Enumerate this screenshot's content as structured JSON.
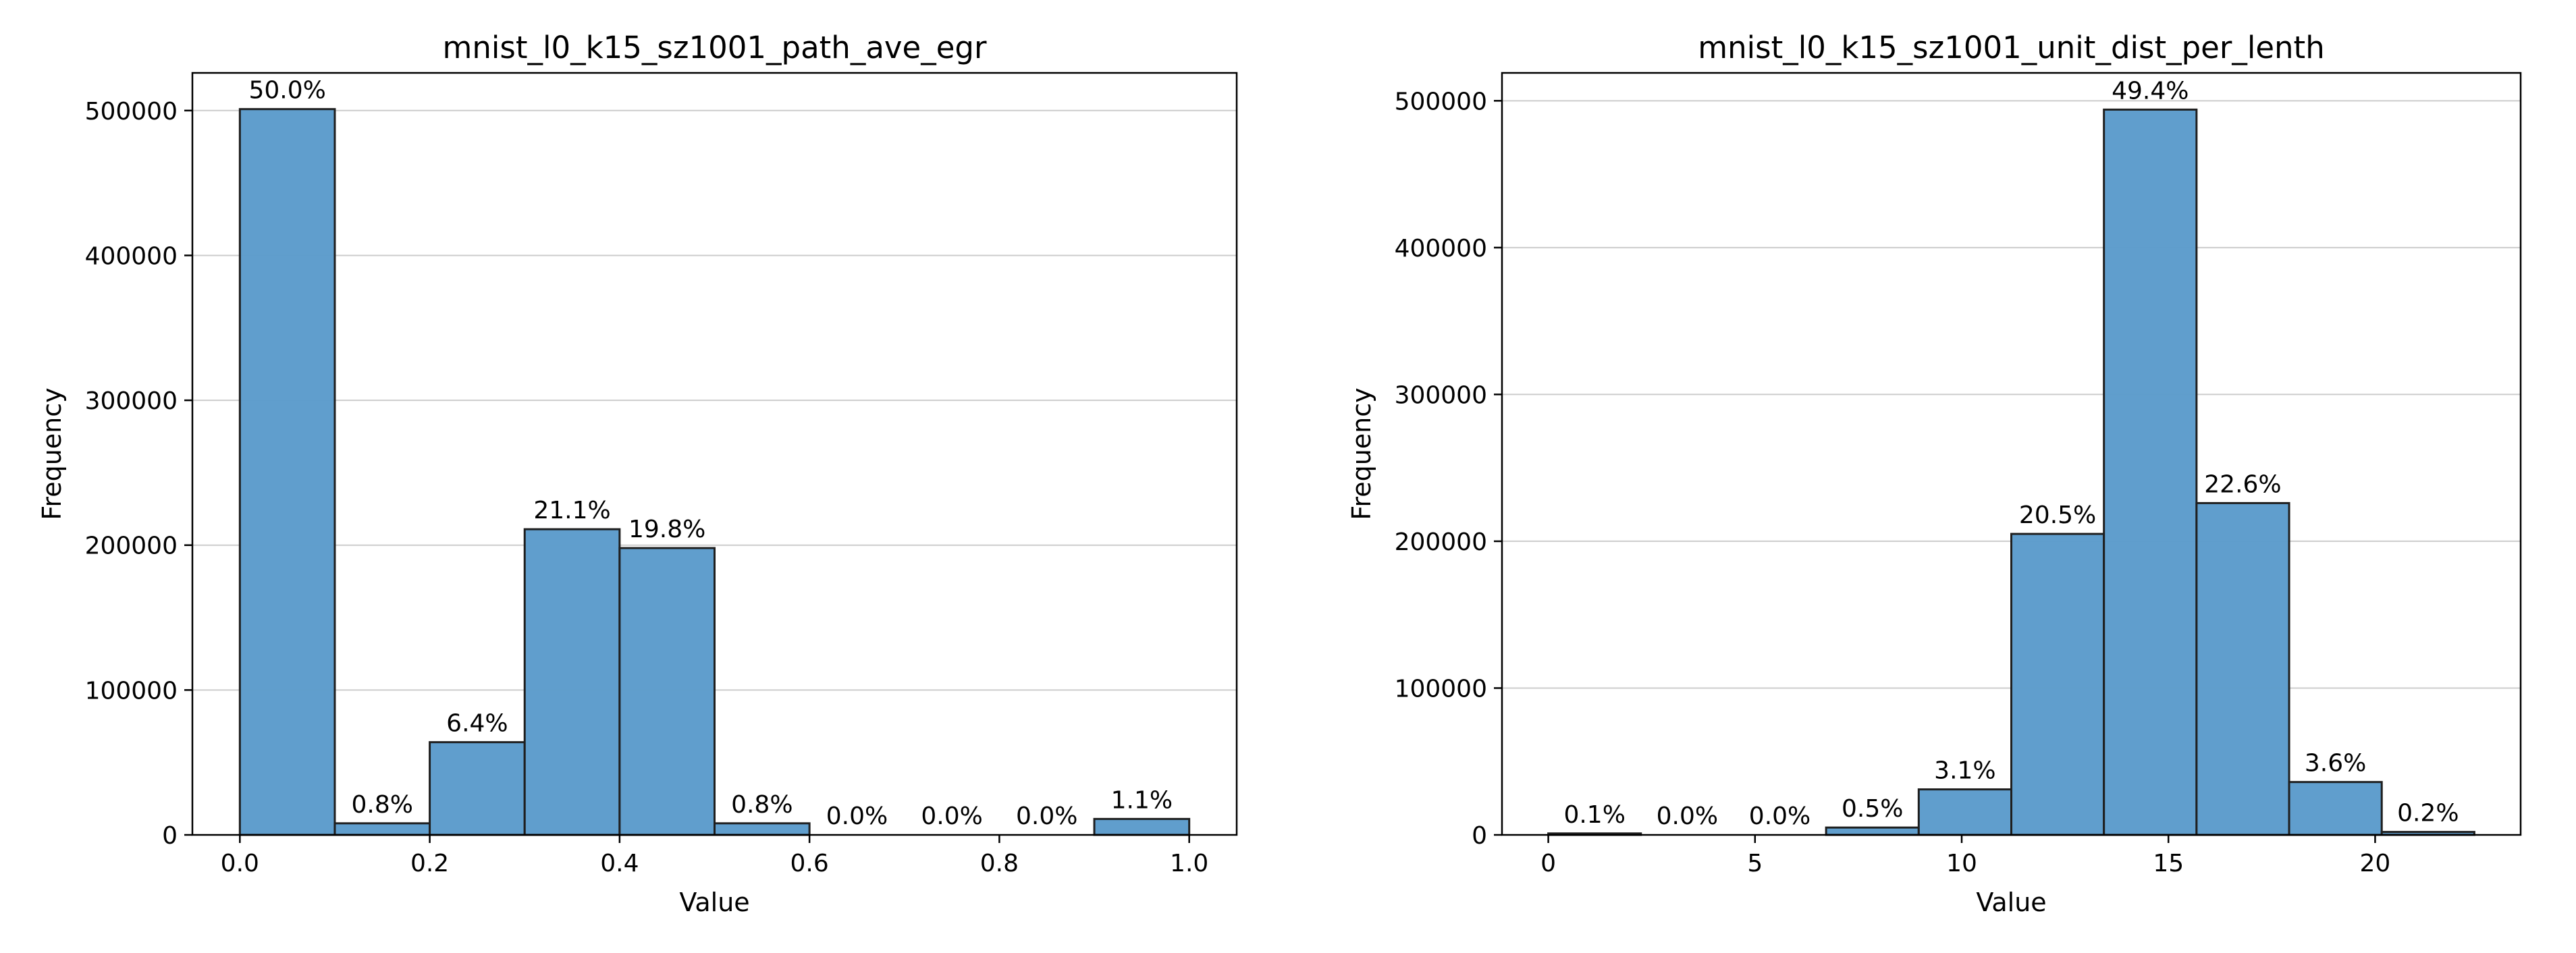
{
  "chart_data": [
    {
      "type": "bar",
      "title": "mnist_l0_k15_sz1001_path_ave_egr",
      "xlabel": "Value",
      "ylabel": "Frequency",
      "bin_edges": [
        0.0,
        0.1,
        0.2,
        0.3,
        0.4,
        0.5,
        0.6,
        0.7,
        0.8,
        0.9,
        1.0
      ],
      "values": [
        501000,
        8000,
        64000,
        211000,
        198000,
        8000,
        0,
        0,
        0,
        11000
      ],
      "bar_labels": [
        "50.0%",
        "0.8%",
        "6.4%",
        "21.1%",
        "19.8%",
        "0.8%",
        "0.0%",
        "0.0%",
        "0.0%",
        "1.1%"
      ],
      "xlim": [
        -0.05,
        1.05
      ],
      "ylim": [
        0,
        526000
      ],
      "xticks": [
        0.0,
        0.2,
        0.4,
        0.6,
        0.8,
        1.0
      ],
      "xtick_labels": [
        "0.0",
        "0.2",
        "0.4",
        "0.6",
        "0.8",
        "1.0"
      ],
      "yticks": [
        0,
        100000,
        200000,
        300000,
        400000,
        500000
      ],
      "ytick_labels": [
        "0",
        "100000",
        "200000",
        "300000",
        "400000",
        "500000"
      ],
      "grid": "y",
      "bar_color": "#5b9bcb"
    },
    {
      "type": "bar",
      "title": "mnist_l0_k15_sz1001_unit_dist_per_lenth",
      "xlabel": "Value",
      "ylabel": "Frequency",
      "bin_edges": [
        0.0,
        2.24,
        4.48,
        6.72,
        8.96,
        11.2,
        13.44,
        15.68,
        17.92,
        20.16,
        22.4
      ],
      "values": [
        1000,
        0,
        0,
        5000,
        31000,
        205000,
        494000,
        226000,
        36000,
        2000
      ],
      "bar_labels": [
        "0.1%",
        "0.0%",
        "0.0%",
        "0.5%",
        "3.1%",
        "20.5%",
        "49.4%",
        "22.6%",
        "3.6%",
        "0.2%"
      ],
      "xlim": [
        -1.12,
        23.52
      ],
      "ylim": [
        0,
        519000
      ],
      "xticks": [
        0,
        5,
        10,
        15,
        20
      ],
      "xtick_labels": [
        "0",
        "5",
        "10",
        "15",
        "20"
      ],
      "yticks": [
        0,
        100000,
        200000,
        300000,
        400000,
        500000
      ],
      "ytick_labels": [
        "0",
        "100000",
        "200000",
        "300000",
        "400000",
        "500000"
      ],
      "grid": "y",
      "bar_color": "#5b9bcb"
    }
  ]
}
